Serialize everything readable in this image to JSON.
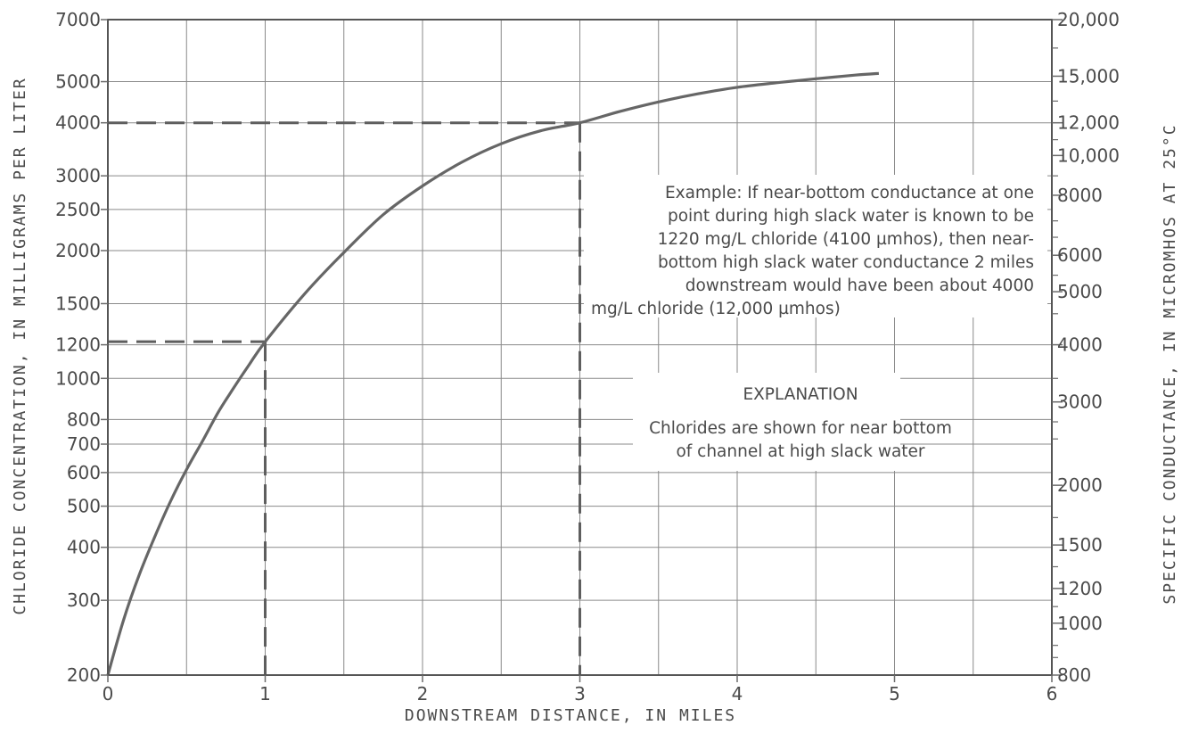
{
  "chart_data": {
    "type": "line",
    "xlabel": "DOWNSTREAM DISTANCE, IN MILES",
    "ylabel": "CHLORIDE CONCENTRATION, IN MILLIGRAMS PER LITER",
    "y2label": "SPECIFIC CONDUCTANCE, IN MICROMHOS AT 25°C",
    "xlim": [
      0,
      6
    ],
    "ylim": [
      200,
      7000
    ],
    "y_scale": "log",
    "grid": true,
    "x_ticks": [
      "0",
      "1",
      "2",
      "3",
      "4",
      "5",
      "6"
    ],
    "y_ticks": [
      {
        "value": 7000,
        "label": "7000"
      },
      {
        "value": 5000,
        "label": "5000"
      },
      {
        "value": 4000,
        "label": "4000"
      },
      {
        "value": 3000,
        "label": "3000"
      },
      {
        "value": 2500,
        "label": "2500"
      },
      {
        "value": 2000,
        "label": "2000"
      },
      {
        "value": 1500,
        "label": "1500"
      },
      {
        "value": 1200,
        "label": "1200"
      },
      {
        "value": 1000,
        "label": "1000"
      },
      {
        "value": 800,
        "label": "800"
      },
      {
        "value": 700,
        "label": "700"
      },
      {
        "value": 600,
        "label": "600"
      },
      {
        "value": 500,
        "label": "500"
      },
      {
        "value": 400,
        "label": "400"
      },
      {
        "value": 300,
        "label": "300"
      },
      {
        "value": 200,
        "label": "200"
      }
    ],
    "y2_ticks": [
      {
        "chloride": 7000,
        "label": "20,000"
      },
      {
        "chloride": 5150,
        "label": "15,000"
      },
      {
        "chloride": 4000,
        "label": "12,000"
      },
      {
        "chloride": 3350,
        "label": "10,000"
      },
      {
        "chloride": 2700,
        "label": "8000"
      },
      {
        "chloride": 1950,
        "label": "6000"
      },
      {
        "chloride": 1600,
        "label": "5000"
      },
      {
        "chloride": 1200,
        "label": "4000"
      },
      {
        "chloride": 880,
        "label": "3000"
      },
      {
        "chloride": 560,
        "label": "2000"
      },
      {
        "chloride": 405,
        "label": "1500"
      },
      {
        "chloride": 320,
        "label": "1200"
      },
      {
        "chloride": 265,
        "label": "1000"
      },
      {
        "chloride": 200,
        "label": "800"
      }
    ],
    "y2_minor_ticks_chloride": [
      6000,
      4500,
      3650,
      3000,
      2350,
      2150,
      1750,
      1420,
      1000,
      790,
      720,
      470,
      360,
      290,
      235,
      220
    ],
    "series": [
      {
        "x": [
          0,
          0.1,
          0.2,
          0.3,
          0.4,
          0.5,
          0.6,
          0.7,
          0.8,
          0.9,
          1.0,
          1.25,
          1.5,
          1.75,
          2.0,
          2.25,
          2.5,
          2.75,
          3.0,
          3.25,
          3.5,
          3.75,
          4.0,
          4.25,
          4.5,
          4.75,
          4.9
        ],
        "values": [
          200,
          270,
          345,
          425,
          515,
          610,
          710,
          830,
          950,
          1080,
          1220,
          1580,
          1980,
          2430,
          2840,
          3230,
          3570,
          3830,
          4000,
          4250,
          4480,
          4680,
          4850,
          4970,
          5080,
          5180,
          5230
        ]
      }
    ],
    "reference_lines": [
      {
        "x": 1,
        "y": 1220
      },
      {
        "x": 3,
        "y": 4000
      }
    ],
    "annotations": [
      {
        "lines": [
          "Example: If near-bottom conductance at one",
          "point during high slack water is known to be",
          "1220 mg/L chloride (4100 µmhos), then near-",
          "bottom high slack water conductance 2 miles",
          "downstream would have been about 4000",
          "mg/L chloride (12,000 µmhos)"
        ]
      },
      {
        "title": "EXPLANATION",
        "lines": [
          "Chlorides are shown for near bottom",
          "of channel at high slack water"
        ]
      }
    ]
  }
}
